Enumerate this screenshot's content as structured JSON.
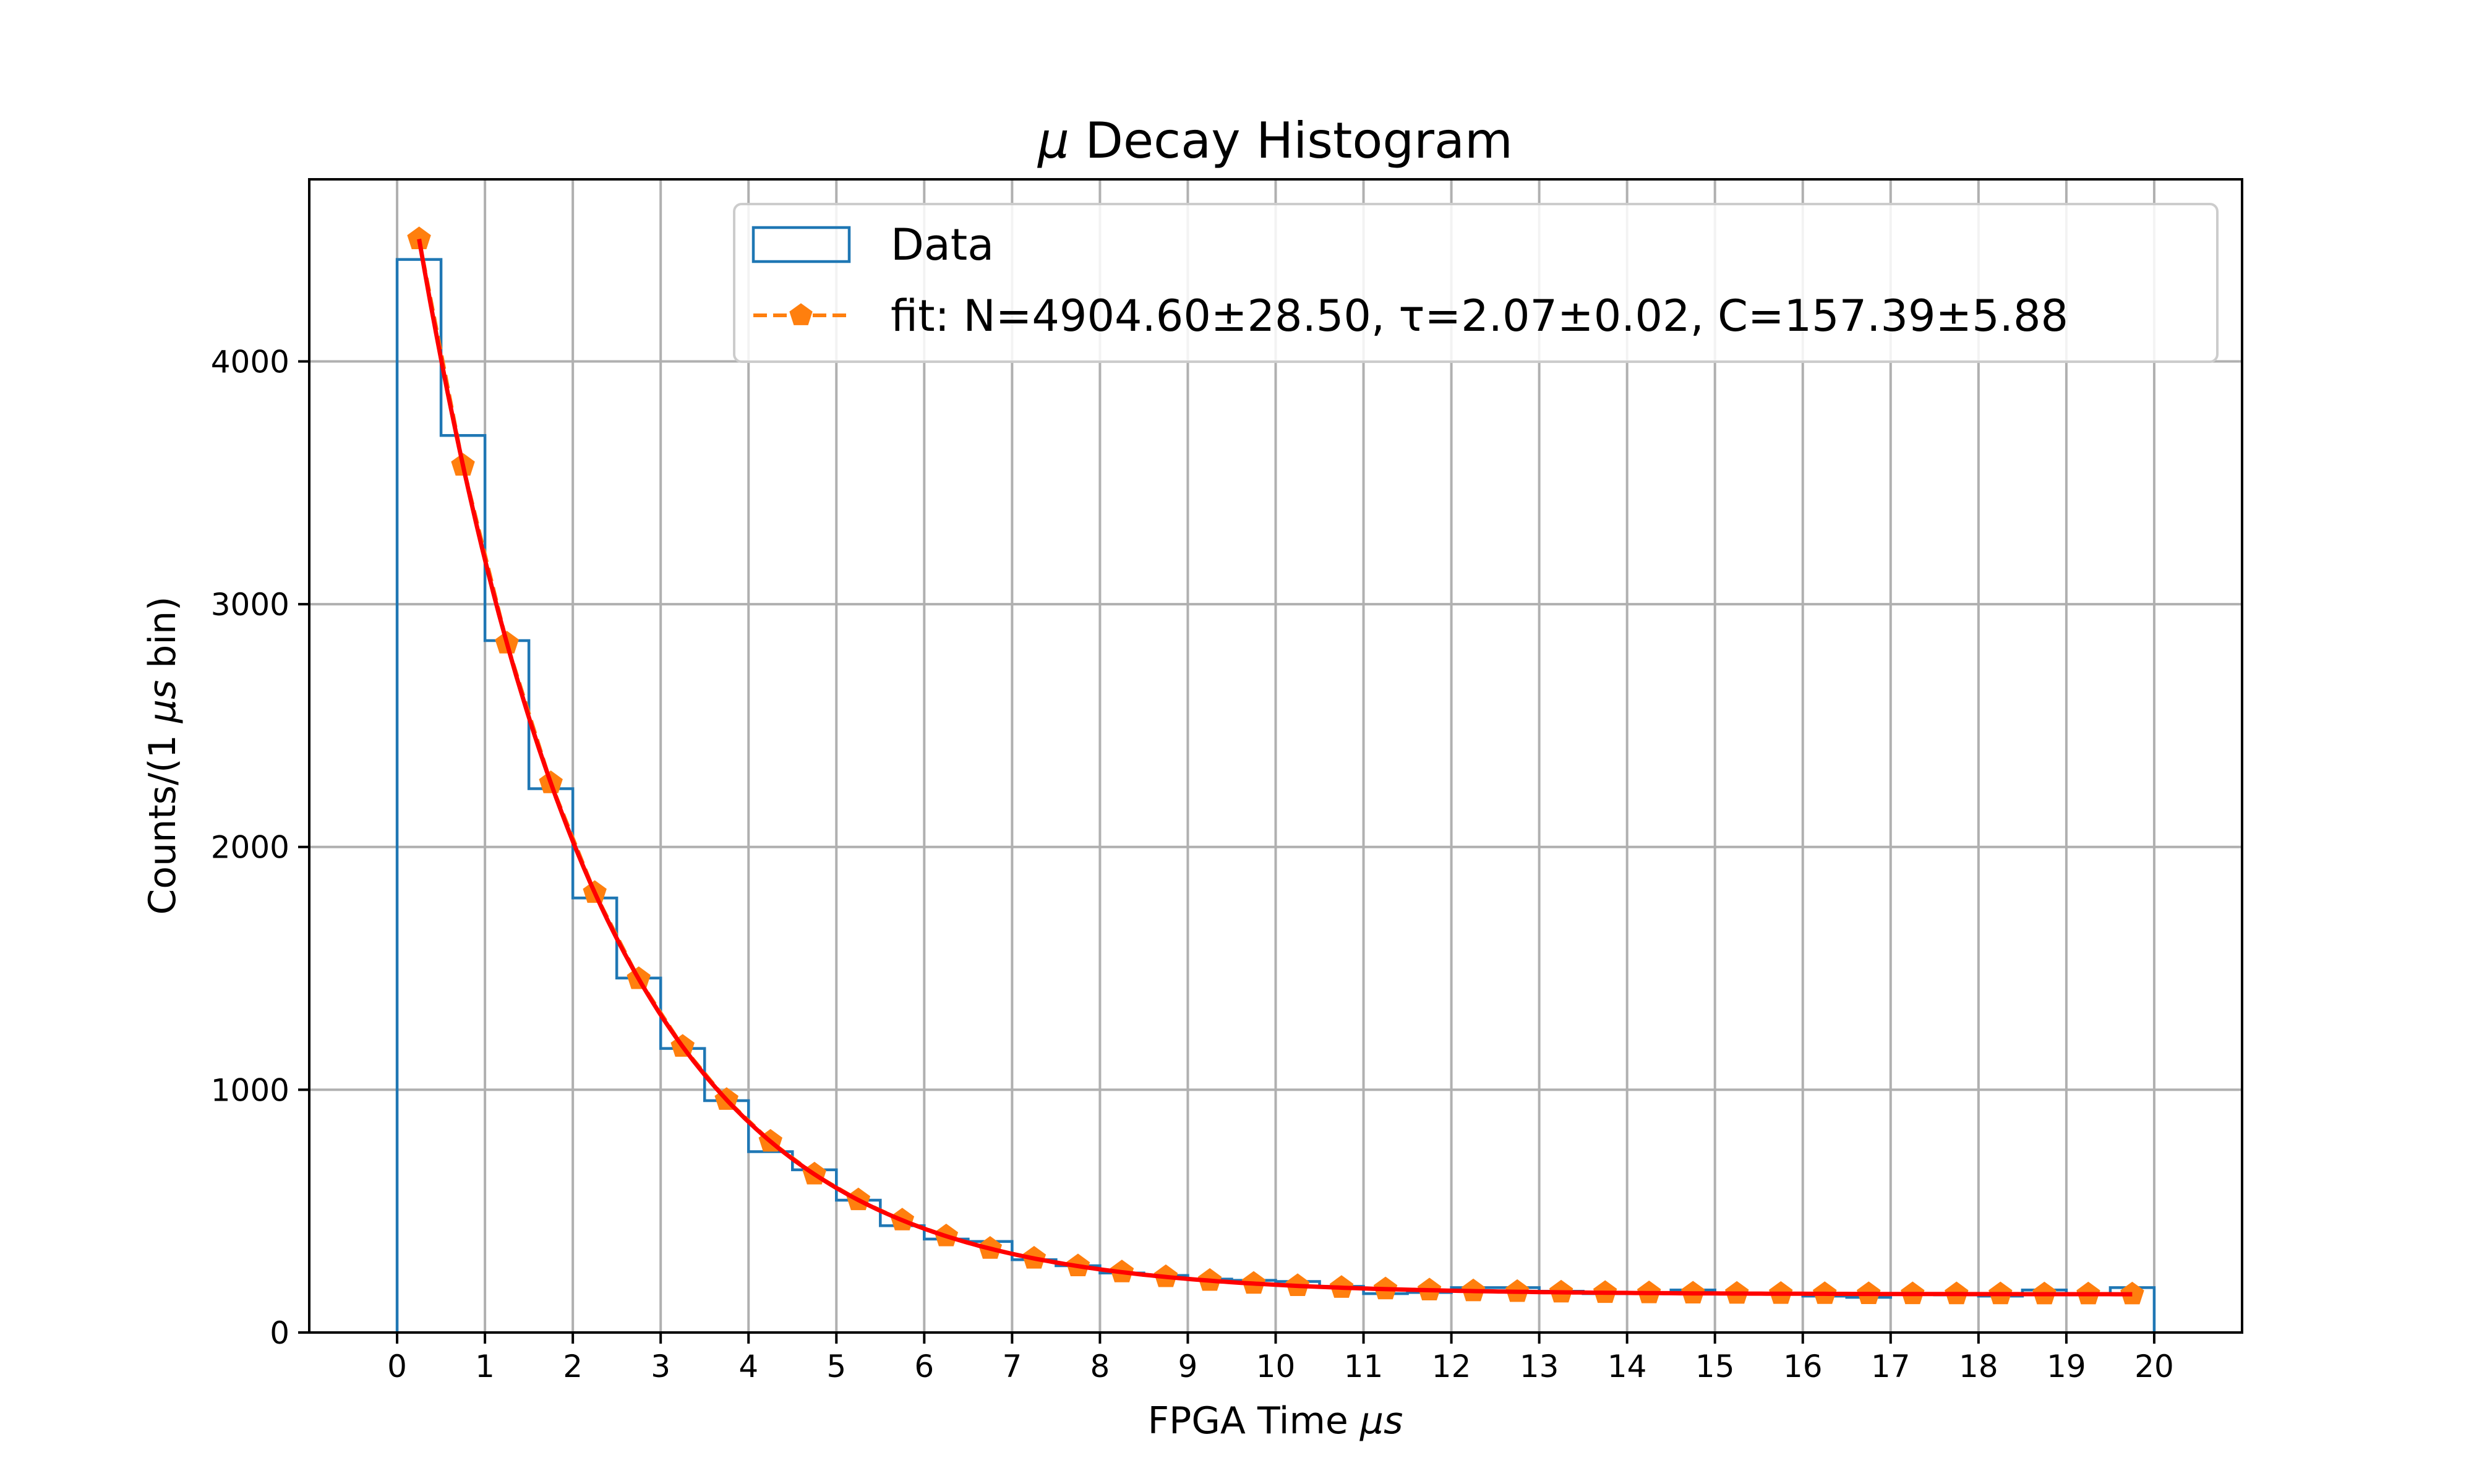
{
  "chart_data": {
    "type": "histogram",
    "title": "Decay Histogram",
    "title_symbol": "μ",
    "xlabel": "FPGA Time ",
    "xlabel_unit": "μs",
    "ylabel": "Counts/(1 ",
    "ylabel_unit": "μs",
    "ylabel_suffix": " bin)",
    "xlim": [
      -1,
      21
    ],
    "ylim": [
      0,
      4750
    ],
    "x_ticks": [
      0,
      1,
      2,
      3,
      4,
      5,
      6,
      7,
      8,
      9,
      10,
      11,
      12,
      13,
      14,
      15,
      16,
      17,
      18,
      19,
      20
    ],
    "y_ticks": [
      0,
      1000,
      2000,
      3000,
      4000
    ],
    "grid": true,
    "legend_position": "top-right",
    "bin_edges": [
      0,
      0.5,
      1,
      1.5,
      2,
      2.5,
      3,
      3.5,
      4,
      4.5,
      5,
      5.5,
      6,
      6.5,
      7,
      7.5,
      8,
      8.5,
      9,
      9.5,
      10,
      10.5,
      11,
      11.5,
      12,
      12.5,
      13,
      13.5,
      14,
      14.5,
      15,
      15.5,
      16,
      16.5,
      17,
      17.5,
      18,
      18.5,
      19,
      19.5,
      20
    ],
    "hist_counts": [
      4420,
      3695,
      2850,
      2240,
      1790,
      1460,
      1170,
      955,
      745,
      670,
      545,
      440,
      385,
      375,
      300,
      275,
      245,
      235,
      220,
      215,
      210,
      190,
      160,
      165,
      185,
      185,
      170,
      160,
      165,
      175,
      160,
      160,
      150,
      145,
      160,
      155,
      150,
      175,
      155,
      185
    ],
    "fit_x": [
      0.25,
      0.75,
      1.25,
      1.75,
      2.25,
      2.75,
      3.25,
      3.75,
      4.25,
      4.75,
      5.25,
      5.75,
      6.25,
      6.75,
      7.25,
      7.75,
      8.25,
      8.75,
      9.25,
      9.75,
      10.25,
      10.75,
      11.25,
      11.75,
      12.25,
      12.75,
      13.25,
      13.75,
      14.25,
      14.75,
      15.25,
      15.75,
      16.25,
      16.75,
      17.25,
      17.75,
      18.25,
      18.75,
      19.25,
      19.75
    ],
    "fit_params": {
      "N": 4904.6,
      "tau": 2.07,
      "C": 157.39
    },
    "series": [
      {
        "name": "Data",
        "kind": "step-histogram",
        "color": "#1f77b4"
      },
      {
        "name": "fit: N=4904.60±28.50, τ=2.07±0.02, C=157.39±5.88",
        "kind": "dashed-line-pentagon-markers",
        "color": "#ff7f0e"
      },
      {
        "name": "",
        "kind": "smooth-curve",
        "color": "#ff0000"
      }
    ]
  }
}
